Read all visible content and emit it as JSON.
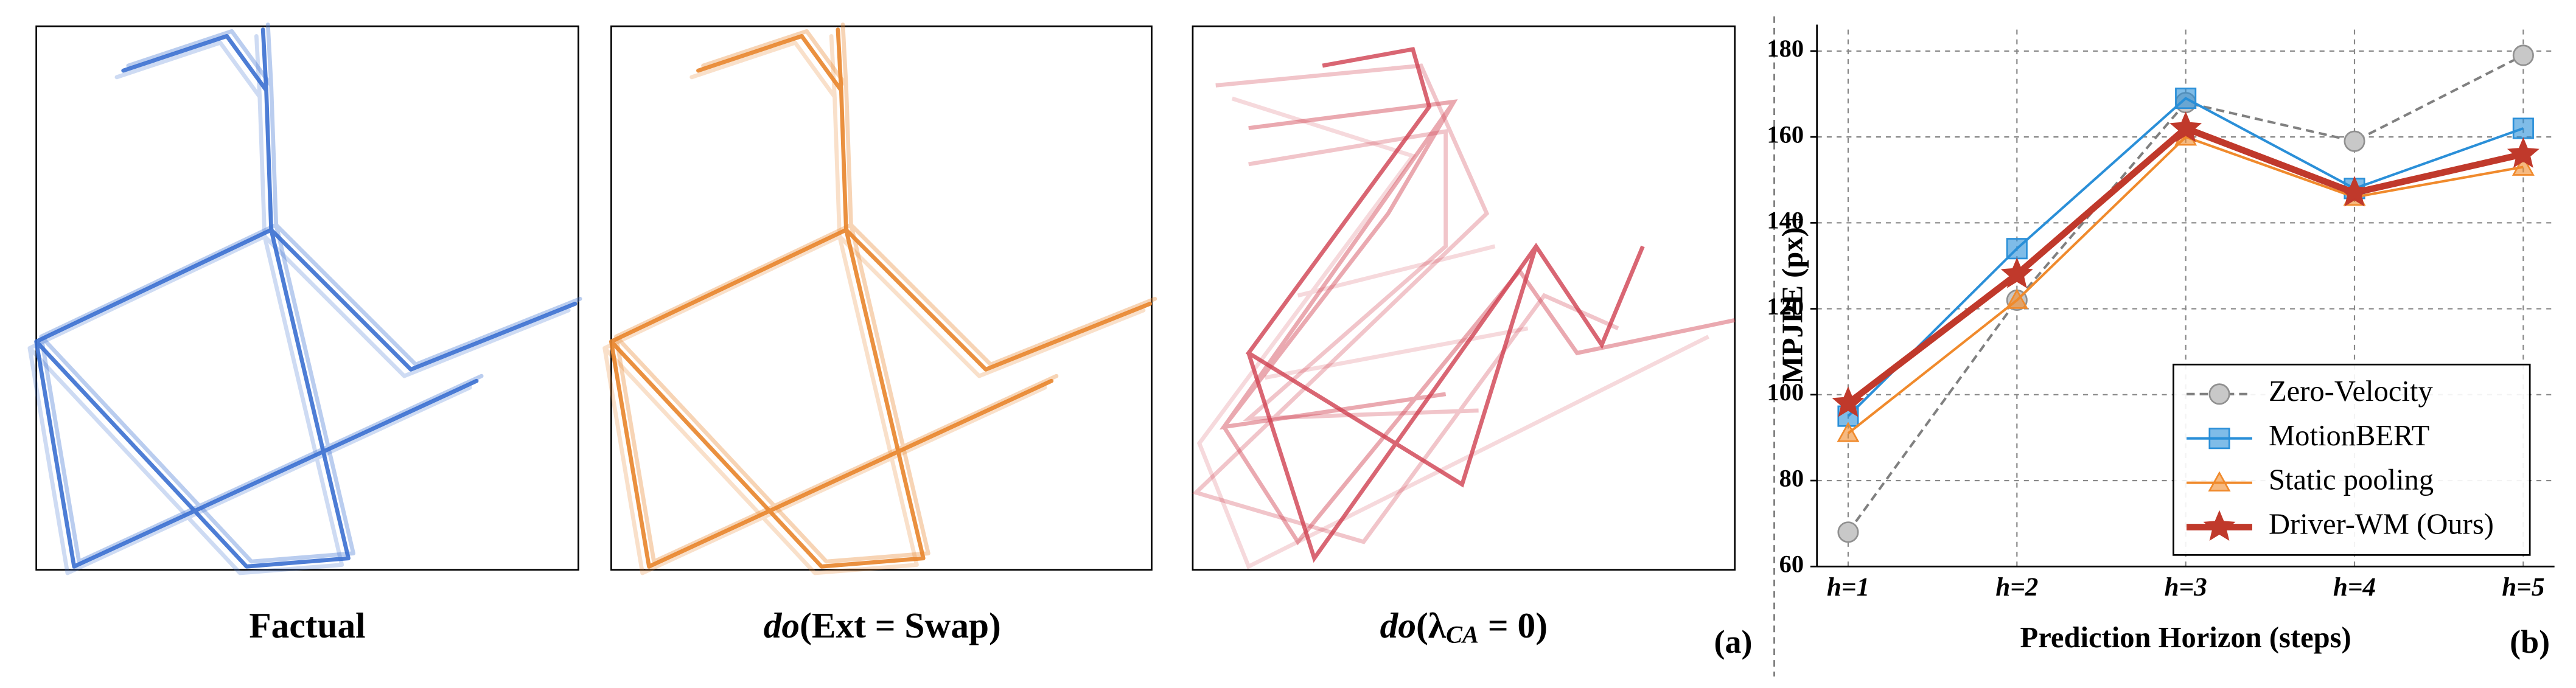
{
  "panel_a": {
    "captions": [
      [
        "Factual"
      ],
      [
        "do",
        "(Ext = Swap)"
      ],
      [
        "do",
        "(λ",
        "CA",
        " = 0)"
      ]
    ],
    "label": "(a)"
  },
  "chart_data": {
    "type": "line",
    "panel_label": "(b)",
    "x_label": "Prediction Horizon (steps)",
    "y_label": "MPJPE (px)↓",
    "categories": [
      "h=1",
      "h=2",
      "h=3",
      "h=4",
      "h=5"
    ],
    "ylim": [
      60,
      185
    ],
    "yticks": [
      60,
      80,
      100,
      120,
      140,
      160,
      180
    ],
    "grid": true,
    "legend": "lower right",
    "series": [
      {
        "name": "Zero-Velocity",
        "color": "#808080",
        "marker": "circle",
        "dashed": true,
        "values": [
          68,
          122,
          168,
          159,
          179
        ]
      },
      {
        "name": "MotionBERT",
        "color": "#2a8fd8",
        "marker": "square",
        "values": [
          95,
          134,
          169,
          148,
          162
        ]
      },
      {
        "name": "Static pooling",
        "color": "#f08a2c",
        "marker": "triangle",
        "values": [
          91,
          122,
          160,
          146,
          153
        ]
      },
      {
        "name": "Driver-WM (Ours)",
        "color": "#c0392b",
        "marker": "star",
        "values": [
          98,
          128,
          162,
          147,
          156
        ]
      }
    ]
  }
}
